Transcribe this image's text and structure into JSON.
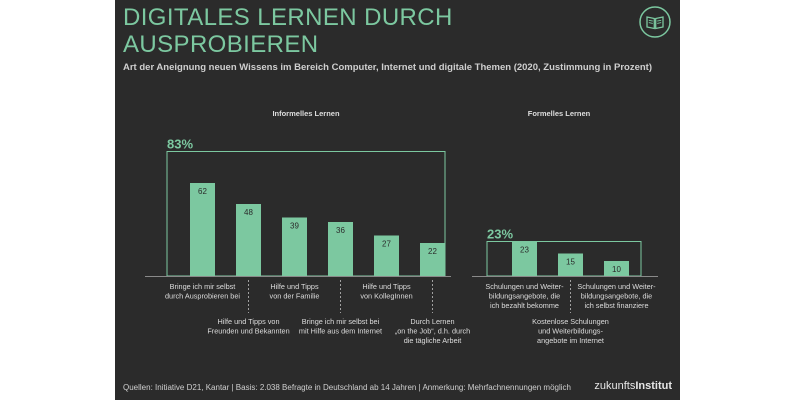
{
  "header": {
    "title": "DIGITALES LERNEN DURCH\nAUSPROBIEREN",
    "subtitle": "Art der Aneignung neuen Wissens im Bereich Computer, Internet und digitale Themen (2020, Zustimmung in Prozent)"
  },
  "footer": {
    "source": "Quellen: Initiative D21, Kantar | Basis: 2.038 Befragte in Deutschland ab 14 Jahren | Anmerkung: Mehrfachnennungen möglich",
    "brand_light": "zukunfts",
    "brand_bold": "Institut"
  },
  "logo": {
    "icon": "open-book-icon"
  },
  "colors": {
    "background": "#2b2b2b",
    "accent": "#7cc8a0",
    "text": "#dddddd"
  },
  "chart_data": {
    "type": "bar",
    "y_unit": "Prozent",
    "ylim": [
      0,
      100
    ],
    "grid": false,
    "groups": [
      {
        "name": "Informelles Lernen",
        "total_label": "83%",
        "total": 83,
        "bars": [
          {
            "value": 62,
            "label": "Bringe ich mir selbst\ndurch Ausprobieren bei"
          },
          {
            "value": 48,
            "label": "Hilfe und Tipps von\nFreunden und Bekannten"
          },
          {
            "value": 39,
            "label": "Hilfe und Tipps\nvon der Familie"
          },
          {
            "value": 36,
            "label": "Bringe ich mir selbst bei\nmit Hilfe aus dem Internet"
          },
          {
            "value": 27,
            "label": "Hilfe und Tipps\nvon KollegInnen"
          },
          {
            "value": 22,
            "label": "Durch Lernen\n„on the Job“, d.h. durch\ndie tägliche Arbeit"
          }
        ]
      },
      {
        "name": "Formelles Lernen",
        "total_label": "23%",
        "total": 23,
        "bars": [
          {
            "value": 23,
            "label": "Schulungen und Weiter-\nbildungsangebote, die\nich bezahlt bekomme"
          },
          {
            "value": 15,
            "label": "Kostenlose Schulungen\nund Weiterbildungs-\nangebote im Internet"
          },
          {
            "value": 10,
            "label": "Schulungen und Weiter-\nbildungsangebote, die\nich selbst finanziere"
          }
        ]
      }
    ]
  }
}
